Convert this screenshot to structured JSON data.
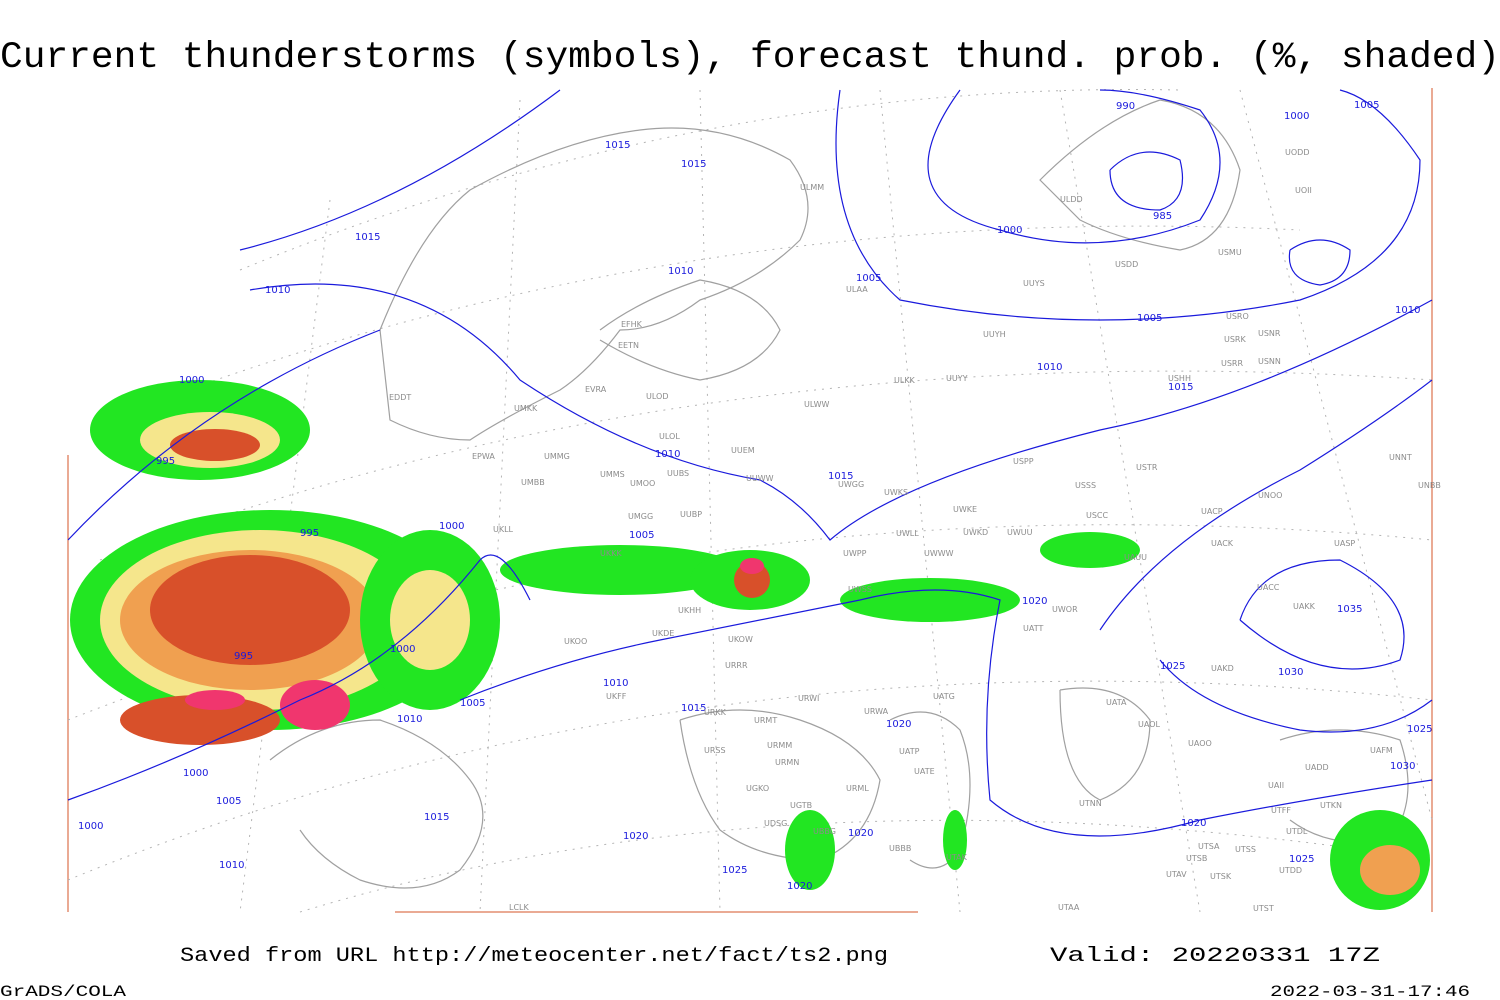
{
  "header": {
    "title": "Current thunderstorms (symbols), forecast thund. prob. (%, shaded)"
  },
  "isobar_labels": [
    "1015",
    "1015",
    "1015",
    "1010",
    "1010",
    "1005",
    "990",
    "985",
    "1000",
    "1000",
    "1005",
    "1005",
    "1010",
    "1010",
    "1015",
    "1000",
    "995",
    "1010",
    "1015",
    "1000",
    "995",
    "1005",
    "995",
    "1000",
    "1020",
    "1035",
    "1025",
    "1030",
    "1010",
    "1005",
    "1015",
    "1010",
    "1020",
    "1025",
    "1000",
    "1030",
    "1005",
    "1000",
    "1015",
    "1020",
    "1020",
    "1020",
    "1010",
    "1025",
    "1025",
    "1020"
  ],
  "stations": [
    "ULMM",
    "ULDD",
    "USDD",
    "USMU",
    "UOII",
    "UODD",
    "ULAA",
    "UUYS",
    "UUYH",
    "USRO",
    "USRK",
    "USNR",
    "USRR",
    "USNN",
    "EFHK",
    "EETN",
    "ULKK",
    "UUYY",
    "USHH",
    "EVRA",
    "ULOD",
    "UMKK",
    "ULWW",
    "EDDT",
    "ULOL",
    "UUEM",
    "EPWA",
    "UMMG",
    "UMMS",
    "UUBS",
    "UMOO",
    "UUWW",
    "UWGG",
    "USPP",
    "USTR",
    "USSS",
    "UMBB",
    "UWKS",
    "UNOO",
    "UNBB",
    "UNNT",
    "UMGG",
    "UUBP",
    "UWKE",
    "USCC",
    "UACP",
    "UKLL",
    "UWKD",
    "UWUU",
    "UWLL",
    "UACK",
    "UASP",
    "UKKK",
    "UWPP",
    "UWWW",
    "UAUU",
    "UWSS",
    "UACC",
    "UAKK",
    "UKHH",
    "UWOR",
    "UATT",
    "UKDE",
    "UKOW",
    "UKOO",
    "URRR",
    "UAKD",
    "UKFF",
    "URKK",
    "URWI",
    "UATG",
    "URWA",
    "UATA",
    "UAOL",
    "URMT",
    "UAOO",
    "URMM",
    "URSS",
    "UATP",
    "UATE",
    "URMN",
    "UADD",
    "UAFM",
    "UGKO",
    "UAII",
    "UGTB",
    "URML",
    "UTNN",
    "UTKN",
    "UTFF",
    "UDSG",
    "UBBG",
    "UTDL",
    "UTSA",
    "UTSS",
    "UBBB",
    "UTAK",
    "UTSB",
    "UTDD",
    "UTAV",
    "UTSK",
    "UTAA",
    "UTST",
    "LCLK"
  ],
  "footer": {
    "source": "Saved from URL http://meteocenter.net/fact/ts2.png",
    "valid": "Valid: 20220331 17Z",
    "software": "GrADS/COLA",
    "timestamp": "2022-03-31-17:46"
  }
}
